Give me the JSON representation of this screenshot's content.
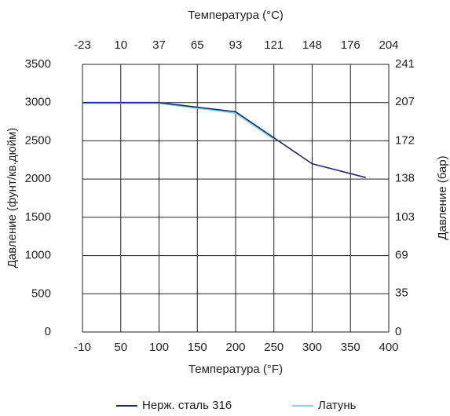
{
  "chart_data": {
    "type": "line",
    "title": "Температура (°C)",
    "xlabel": "Температура (°F)",
    "ylabel": "Давление (фунт/кв.дюйм)",
    "y2label": "Давление (бар)",
    "xlim": [
      -10,
      400
    ],
    "xticks": [
      -10,
      50,
      100,
      150,
      200,
      250,
      300,
      350,
      400
    ],
    "x2lim": [
      -23,
      204
    ],
    "x2ticks": [
      -23,
      10,
      37,
      65,
      93,
      121,
      148,
      176,
      204
    ],
    "ylim": [
      0,
      3500
    ],
    "yticks": [
      0,
      500,
      1000,
      1500,
      2000,
      2500,
      3000,
      3500
    ],
    "y2lim": [
      0,
      241
    ],
    "y2ticks": [
      0,
      35,
      69,
      103,
      138,
      172,
      207,
      241
    ],
    "grid": true,
    "legend": "bottom",
    "series": [
      {
        "name": "Нерж. сталь 316",
        "color": "#1f2a6e",
        "x": [
          -10,
          100,
          200,
          250,
          300,
          370
        ],
        "values": [
          3000,
          3000,
          2880,
          2540,
          2200,
          2020
        ]
      },
      {
        "name": "Латунь",
        "color": "#7fd6e8",
        "x": [
          -10,
          100,
          200,
          250
        ],
        "values": [
          2990,
          2990,
          2860,
          2520
        ]
      }
    ]
  }
}
